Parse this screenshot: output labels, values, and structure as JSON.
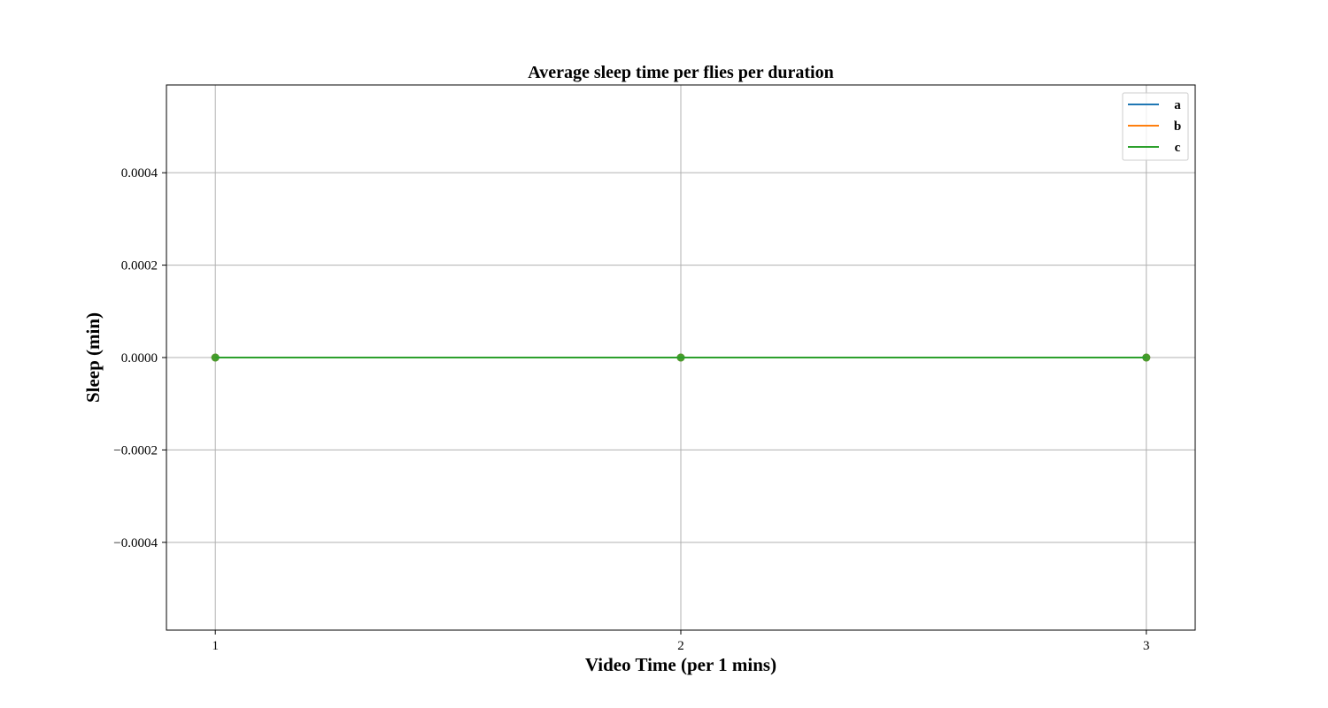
{
  "chart_data": {
    "type": "line",
    "title": "Average sleep time per flies per duration",
    "xlabel": "Video Time (per 1 mins)",
    "ylabel": "Sleep (min)",
    "x": [
      1,
      2,
      3
    ],
    "xticks": [
      "1",
      "2",
      "3"
    ],
    "xlim": [
      0.895,
      3.105
    ],
    "ylim": [
      -0.00059,
      0.00059
    ],
    "yticks": [
      -0.0004,
      -0.0002,
      0.0,
      0.0002,
      0.0004
    ],
    "ytick_labels": [
      "−0.0004",
      "−0.0002",
      "0.0000",
      "0.0002",
      "0.0004"
    ],
    "grid": true,
    "legend_position": "top-right",
    "markers": true,
    "series": [
      {
        "name": "a",
        "color": "#1f77b4",
        "values": [
          0,
          0,
          0
        ]
      },
      {
        "name": "b",
        "color": "#ff7f0e",
        "values": [
          0,
          0,
          0
        ]
      },
      {
        "name": "c",
        "color": "#2ca02c",
        "values": [
          0,
          0,
          0
        ]
      }
    ]
  }
}
